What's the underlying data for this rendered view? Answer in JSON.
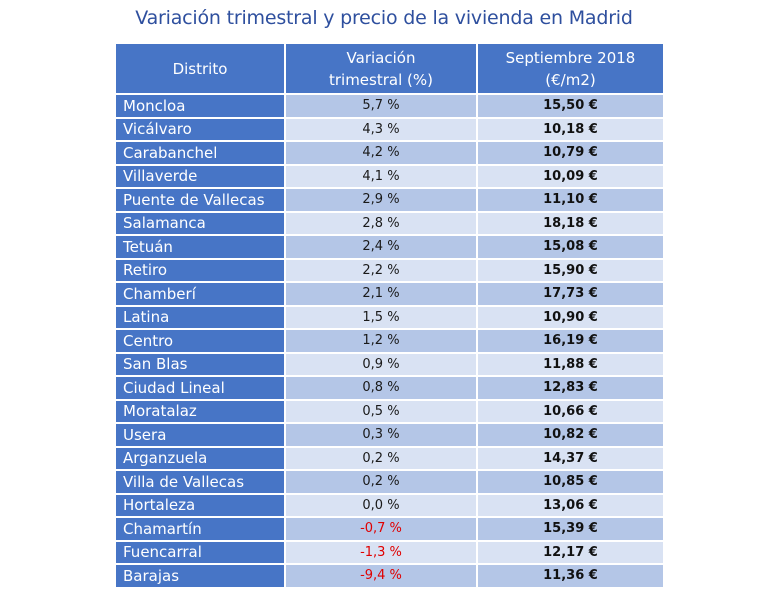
{
  "title": "Variación trimestral y precio de la vivienda en Madrid",
  "table": {
    "headers": [
      "Distrito",
      "Variación trimestral (%)",
      "Septiembre 2018 (€/m2)"
    ],
    "header_lines": {
      "col2_line1": "Variación",
      "col2_line2": "trimestral (%)",
      "col3_line1": "Septiembre 2018",
      "col3_line2": "(€/m2)"
    },
    "rows": [
      {
        "district": "Moncloa",
        "variation": "5,7 %",
        "price": "15,50 €"
      },
      {
        "district": "Vicálvaro",
        "variation": "4,3 %",
        "price": "10,18 €"
      },
      {
        "district": "Carabanchel",
        "variation": "4,2 %",
        "price": "10,79 €"
      },
      {
        "district": "Villaverde",
        "variation": "4,1 %",
        "price": "10,09 €"
      },
      {
        "district": "Puente de Vallecas",
        "variation": "2,9 %",
        "price": "11,10 €"
      },
      {
        "district": "Salamanca",
        "variation": "2,8 %",
        "price": "18,18 €"
      },
      {
        "district": "Tetuán",
        "variation": "2,4 %",
        "price": "15,08 €"
      },
      {
        "district": "Retiro",
        "variation": "2,2 %",
        "price": "15,90 €"
      },
      {
        "district": "Chamberí",
        "variation": "2,1 %",
        "price": "17,73 €"
      },
      {
        "district": "Latina",
        "variation": "1,5 %",
        "price": "10,90 €"
      },
      {
        "district": "Centro",
        "variation": "1,2 %",
        "price": "16,19 €"
      },
      {
        "district": "San Blas",
        "variation": "0,9 %",
        "price": "11,88 €"
      },
      {
        "district": "Ciudad Lineal",
        "variation": "0,8 %",
        "price": "12,83 €"
      },
      {
        "district": "Moratalaz",
        "variation": "0,5 %",
        "price": "10,66 €"
      },
      {
        "district": "Usera",
        "variation": "0,3 %",
        "price": "10,82 €"
      },
      {
        "district": "Arganzuela",
        "variation": "0,2 %",
        "price": "14,37 €"
      },
      {
        "district": "Villa de Vallecas",
        "variation": "0,2 %",
        "price": "10,85 €"
      },
      {
        "district": "Hortaleza",
        "variation": "0,0 %",
        "price": "13,06 €"
      },
      {
        "district": "Chamartín",
        "variation": "-0,7 %",
        "price": "15,39 €"
      },
      {
        "district": "Fuencarral",
        "variation": "-1,3 %",
        "price": "12,17 €"
      },
      {
        "district": "Barajas",
        "variation": "-9,4 %",
        "price": "11,36 €"
      }
    ]
  },
  "colors": {
    "title": "#2e4f9e",
    "header_bg": "#4775c6",
    "row_light": "#d9e2f3",
    "row_dark": "#b4c6e7",
    "negative": "#e00000"
  },
  "chart_data": {
    "type": "table",
    "title": "Variación trimestral y precio de la vivienda en Madrid",
    "columns": [
      "Distrito",
      "Variación trimestral (%)",
      "Septiembre 2018 (€/m2)"
    ],
    "categories": [
      "Moncloa",
      "Vicálvaro",
      "Carabanchel",
      "Villaverde",
      "Puente de Vallecas",
      "Salamanca",
      "Tetuán",
      "Retiro",
      "Chamberí",
      "Latina",
      "Centro",
      "San Blas",
      "Ciudad Lineal",
      "Moratalaz",
      "Usera",
      "Arganzuela",
      "Villa de Vallecas",
      "Hortaleza",
      "Chamartín",
      "Fuencarral",
      "Barajas"
    ],
    "series": [
      {
        "name": "Variación trimestral (%)",
        "values": [
          5.7,
          4.3,
          4.2,
          4.1,
          2.9,
          2.8,
          2.4,
          2.2,
          2.1,
          1.5,
          1.2,
          0.9,
          0.8,
          0.5,
          0.3,
          0.2,
          0.2,
          0.0,
          -0.7,
          -1.3,
          -9.4
        ]
      },
      {
        "name": "Septiembre 2018 (€/m2)",
        "values": [
          15.5,
          10.18,
          10.79,
          10.09,
          11.1,
          18.18,
          15.08,
          15.9,
          17.73,
          10.9,
          16.19,
          11.88,
          12.83,
          10.66,
          10.82,
          14.37,
          10.85,
          13.06,
          15.39,
          12.17,
          11.36
        ]
      }
    ]
  }
}
